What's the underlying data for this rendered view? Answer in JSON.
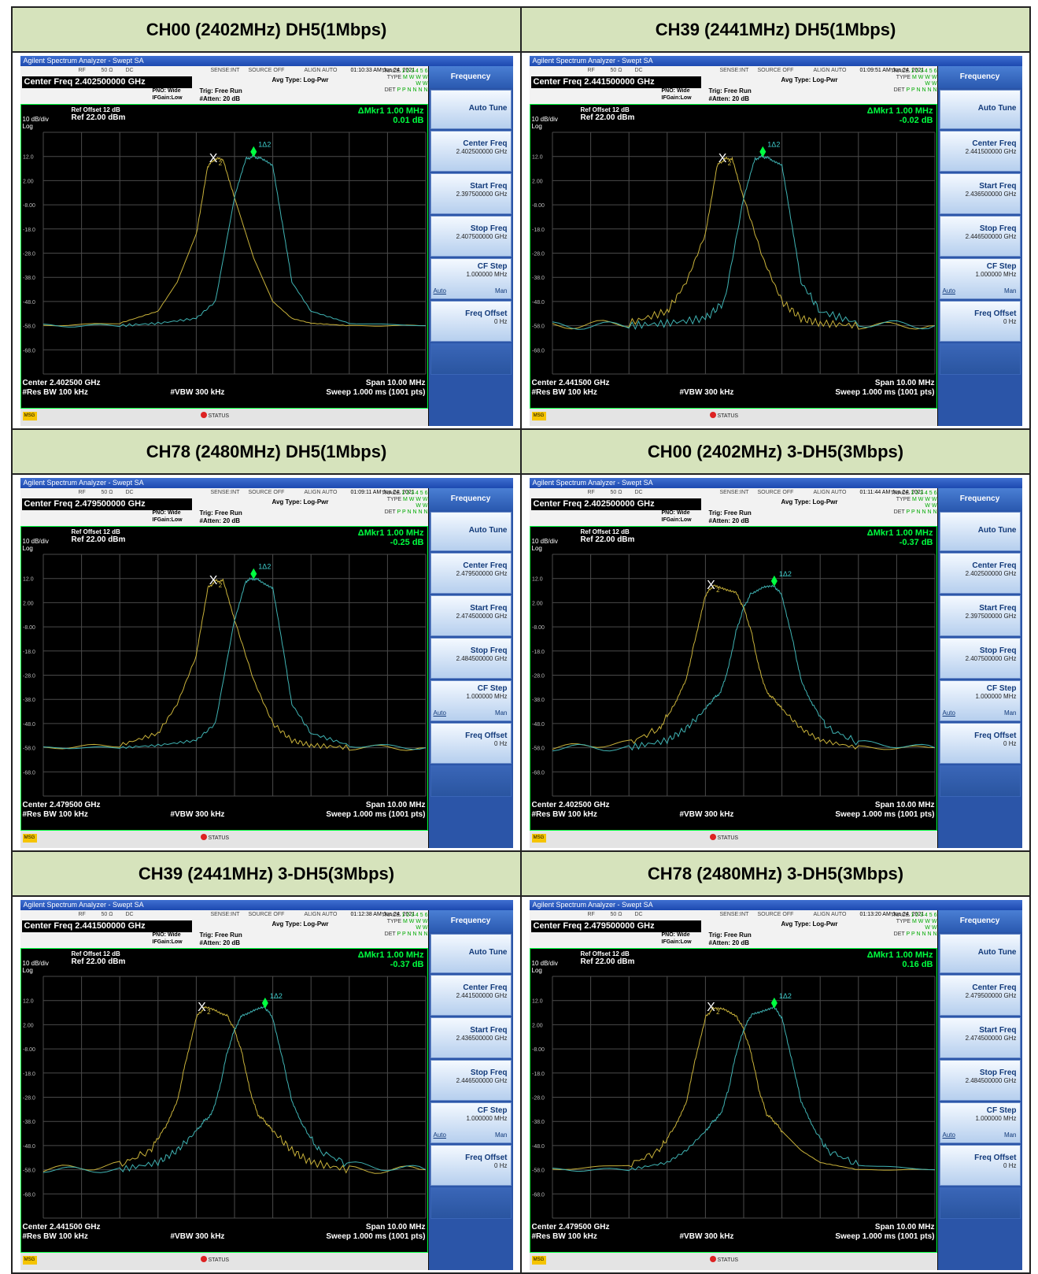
{
  "common": {
    "app_title": "Agilent Spectrum Analyzer - Swept SA",
    "rf": "RF",
    "ohm": "50 Ω",
    "dc": "DC",
    "sense": "SENSE:INT",
    "source": "SOURCE OFF",
    "align": "ALIGN AUTO",
    "avg_type": "Avg Type: Log-Pwr",
    "pno": "PNO: Wide",
    "ifgain": "IFGain:Low",
    "trig": "Trig: Free Run",
    "atten": "#Atten: 20 dB",
    "trace_label": "TRACE",
    "trace_value": "1 2 3 4 5 6",
    "type_label": "TYPE",
    "type_value": "M W W W W W",
    "det_label": "DET",
    "det_value": "P P N N N N",
    "ref_offset": "Ref Offset 12 dB",
    "scale": "10 dB/div",
    "ref_level": "Ref 22.00 dBm",
    "log": "Log",
    "delta_marker": "ΔMkr1 1.00 MHz",
    "res_bw": "#Res BW 100 kHz",
    "vbw": "#VBW 300 kHz",
    "span": "Span 10.00 MHz",
    "sweep": "Sweep  1.000 ms (1001 pts)",
    "msg": "MSG",
    "status": "STATUS",
    "marker_x": "X",
    "marker_2": "2",
    "marker_1d2": "1Δ2",
    "y_ticks": [
      "12.0",
      "2.00",
      "-8.00",
      "-18.0",
      "-28.0",
      "-38.0",
      "-48.0",
      "-58.0",
      "-68.0"
    ],
    "menu": {
      "title": "Frequency",
      "auto_tune": "Auto Tune",
      "center_freq": "Center Freq",
      "start_freq": "Start Freq",
      "stop_freq": "Stop Freq",
      "cf_step": "CF Step",
      "cf_step_value": "1.000000 MHz",
      "auto": "Auto",
      "man": "Man",
      "freq_offset": "Freq Offset",
      "freq_offset_value": "0 Hz"
    },
    "colors": {
      "trace_yellow": "#c9b23a",
      "trace_cyan": "#3fb3b3",
      "marker_green": "#00ff40"
    }
  },
  "panels": [
    {
      "title": "CH00 (2402MHz) DH5(1Mbps)",
      "timestamp": "01:10:33 AM Jun 24, 2021",
      "center_freq_display": "Center Freq 2.402500000 GHz",
      "delta_value": "0.01 dB",
      "center_freq": "2.402500000 GHz",
      "start_freq": "2.397500000 GHz",
      "stop_freq": "2.407500000 GHz",
      "center_label": "Center 2.402500 GHz"
    },
    {
      "title": "CH39 (2441MHz) DH5(1Mbps)",
      "timestamp": "01:09:51 AM Jun 24, 2021",
      "center_freq_display": "Center Freq 2.441500000 GHz",
      "delta_value": "-0.02 dB",
      "center_freq": "2.441500000 GHz",
      "start_freq": "2.436500000 GHz",
      "stop_freq": "2.446500000 GHz",
      "center_label": "Center 2.441500 GHz"
    },
    {
      "title": "CH78 (2480MHz) DH5(1Mbps)",
      "timestamp": "01:09:11 AM Jun 24, 2021",
      "center_freq_display": "Center Freq 2.479500000 GHz",
      "delta_value": "-0.25 dB",
      "center_freq": "2.479500000 GHz",
      "start_freq": "2.474500000 GHz",
      "stop_freq": "2.484500000 GHz",
      "center_label": "Center 2.479500 GHz"
    },
    {
      "title": "CH00 (2402MHz) 3-DH5(3Mbps)",
      "timestamp": "01:11:44 AM Jun 24, 2021",
      "center_freq_display": "Center Freq 2.402500000 GHz",
      "delta_value": "-0.37 dB",
      "center_freq": "2.402500000 GHz",
      "start_freq": "2.397500000 GHz",
      "stop_freq": "2.407500000 GHz",
      "center_label": "Center 2.402500 GHz"
    },
    {
      "title": "CH39 (2441MHz) 3-DH5(3Mbps)",
      "timestamp": "01:12:38 AM Jun 24, 2021",
      "center_freq_display": "Center Freq 2.441500000 GHz",
      "delta_value": "-0.37 dB",
      "center_freq": "2.441500000 GHz",
      "start_freq": "2.436500000 GHz",
      "stop_freq": "2.446500000 GHz",
      "center_label": "Center 2.441500 GHz"
    },
    {
      "title": "CH78 (2480MHz) 3-DH5(3Mbps)",
      "timestamp": "01:13:20 AM Jun 24, 2021",
      "center_freq_display": "Center Freq 2.479500000 GHz",
      "delta_value": "0.16 dB",
      "center_freq": "2.479500000 GHz",
      "start_freq": "2.474500000 GHz",
      "stop_freq": "2.484500000 GHz",
      "center_label": "Center 2.479500 GHz"
    }
  ],
  "chart_data": [
    {
      "type": "line",
      "title": "CH00 (2402MHz) DH5(1Mbps)",
      "xlabel": "",
      "ylabel": "",
      "x_unit": "MHz offset from center",
      "xlim": [
        -5,
        5
      ],
      "ylim": [
        -78,
        22
      ],
      "grid": true,
      "series": [
        {
          "x": [
            -5,
            -3,
            -2,
            -1.5,
            -1,
            -0.7,
            -0.5,
            -0.3,
            0,
            0.5,
            1,
            1.5,
            2,
            3,
            5
          ],
          "y": [
            -58,
            -57,
            -52,
            -40,
            -20,
            8,
            11,
            11,
            -5,
            -30,
            -48,
            -55,
            -57,
            -58,
            -58
          ]
        },
        {
          "x": [
            -5,
            -3,
            -2,
            -1,
            -0.5,
            0,
            0.3,
            0.5,
            0.7,
            1,
            1.3,
            1.5,
            2,
            3,
            5
          ],
          "y": [
            -58,
            -58,
            -57,
            -55,
            -48,
            -5,
            11,
            12,
            11,
            8,
            -20,
            -40,
            -52,
            -57,
            -58
          ]
        }
      ],
      "delta_marker": {
        "dx_mhz": 1.0,
        "dy_db": 0.01
      }
    },
    {
      "type": "line",
      "title": "CH39 (2441MHz) DH5(1Mbps)",
      "xlabel": "",
      "ylabel": "",
      "x_unit": "MHz offset from center",
      "xlim": [
        -5,
        5
      ],
      "ylim": [
        -78,
        22
      ],
      "grid": true,
      "series": [
        {
          "x": [
            -5,
            -3,
            -2,
            -1.5,
            -1,
            -0.7,
            -0.5,
            -0.3,
            0,
            0.5,
            1,
            1.5,
            2,
            3,
            5
          ],
          "y": [
            -58,
            -57,
            -52,
            -40,
            -20,
            8,
            11,
            11,
            -5,
            -30,
            -48,
            -55,
            -57,
            -58,
            -58
          ]
        },
        {
          "x": [
            -5,
            -3,
            -2,
            -1,
            -0.5,
            0,
            0.3,
            0.5,
            0.7,
            1,
            1.3,
            1.5,
            2,
            3,
            5
          ],
          "y": [
            -58,
            -58,
            -57,
            -55,
            -48,
            -5,
            11,
            12,
            11,
            8,
            -20,
            -40,
            -52,
            -57,
            -58
          ]
        }
      ],
      "delta_marker": {
        "dx_mhz": 1.0,
        "dy_db": -0.02
      }
    },
    {
      "type": "line",
      "title": "CH78 (2480MHz) DH5(1Mbps)",
      "xlabel": "",
      "ylabel": "",
      "x_unit": "MHz offset from center",
      "xlim": [
        -5,
        5
      ],
      "ylim": [
        -78,
        22
      ],
      "grid": true,
      "series": [
        {
          "x": [
            -5,
            -3,
            -2,
            -1.5,
            -1,
            -0.7,
            -0.5,
            -0.3,
            0,
            0.5,
            1,
            1.5,
            2,
            3,
            5
          ],
          "y": [
            -58,
            -57,
            -52,
            -40,
            -20,
            8,
            11,
            11,
            -5,
            -30,
            -48,
            -55,
            -57,
            -58,
            -58
          ]
        },
        {
          "x": [
            -5,
            -3,
            -2,
            -1,
            -0.5,
            0,
            0.3,
            0.5,
            0.7,
            1,
            1.3,
            1.5,
            2,
            3,
            5
          ],
          "y": [
            -58,
            -58,
            -57,
            -55,
            -48,
            -5,
            11,
            12,
            11,
            8,
            -20,
            -40,
            -52,
            -57,
            -58
          ]
        }
      ],
      "delta_marker": {
        "dx_mhz": 1.0,
        "dy_db": -0.25
      }
    },
    {
      "type": "line",
      "title": "CH00 (2402MHz) 3-DH5(3Mbps)",
      "xlabel": "",
      "ylabel": "",
      "x_unit": "MHz offset from center",
      "xlim": [
        -5,
        5
      ],
      "ylim": [
        -78,
        22
      ],
      "grid": true,
      "series": [
        {
          "x": [
            -5,
            -3,
            -2.2,
            -1.8,
            -1.5,
            -1.3,
            -1.0,
            -0.8,
            -0.5,
            -0.2,
            0,
            0.2,
            0.4,
            0.6,
            0.8,
            1.0,
            1.5,
            2,
            3,
            5
          ],
          "y": [
            -58,
            -56,
            -50,
            -40,
            -30,
            -15,
            5,
            9,
            8,
            6,
            0,
            -10,
            -25,
            -35,
            -38,
            -42,
            -50,
            -55,
            -58,
            -58
          ]
        },
        {
          "x": [
            -5,
            -3,
            -2,
            -1.5,
            -1,
            -0.8,
            -0.6,
            -0.4,
            -0.2,
            0,
            0.2,
            0.5,
            0.8,
            1.0,
            1.3,
            1.5,
            1.8,
            2.2,
            3,
            5
          ],
          "y": [
            -58,
            -58,
            -55,
            -50,
            -42,
            -38,
            -35,
            -25,
            -10,
            0,
            6,
            8,
            9,
            5,
            -15,
            -30,
            -40,
            -50,
            -56,
            -58
          ]
        }
      ],
      "delta_marker": {
        "dx_mhz": 1.0,
        "dy_db": -0.37
      }
    },
    {
      "type": "line",
      "title": "CH39 (2441MHz) 3-DH5(3Mbps)",
      "xlabel": "",
      "ylabel": "",
      "x_unit": "MHz offset from center",
      "xlim": [
        -5,
        5
      ],
      "ylim": [
        -78,
        22
      ],
      "grid": true,
      "series": [
        {
          "x": [
            -5,
            -3,
            -2.2,
            -1.8,
            -1.5,
            -1.3,
            -1.0,
            -0.8,
            -0.5,
            -0.2,
            0,
            0.2,
            0.4,
            0.6,
            0.8,
            1.0,
            1.5,
            2,
            3,
            5
          ],
          "y": [
            -58,
            -56,
            -50,
            -40,
            -30,
            -15,
            5,
            9,
            8,
            6,
            0,
            -10,
            -25,
            -35,
            -38,
            -42,
            -50,
            -55,
            -58,
            -58
          ]
        },
        {
          "x": [
            -5,
            -3,
            -2,
            -1.5,
            -1,
            -0.8,
            -0.6,
            -0.4,
            -0.2,
            0,
            0.2,
            0.5,
            0.8,
            1.0,
            1.3,
            1.5,
            1.8,
            2.2,
            3,
            5
          ],
          "y": [
            -58,
            -58,
            -55,
            -50,
            -42,
            -38,
            -35,
            -25,
            -10,
            0,
            6,
            8,
            9,
            5,
            -15,
            -30,
            -40,
            -50,
            -56,
            -58
          ]
        }
      ],
      "delta_marker": {
        "dx_mhz": 1.0,
        "dy_db": -0.37
      }
    },
    {
      "type": "line",
      "title": "CH78 (2480MHz) 3-DH5(3Mbps)",
      "xlabel": "",
      "ylabel": "",
      "x_unit": "MHz offset from center",
      "xlim": [
        -5,
        5
      ],
      "ylim": [
        -78,
        22
      ],
      "grid": true,
      "series": [
        {
          "x": [
            -5,
            -3,
            -2.2,
            -1.8,
            -1.5,
            -1.3,
            -1.0,
            -0.8,
            -0.5,
            -0.2,
            0,
            0.2,
            0.4,
            0.6,
            0.8,
            1.0,
            1.5,
            2,
            3,
            5
          ],
          "y": [
            -58,
            -56,
            -50,
            -40,
            -30,
            -15,
            5,
            9,
            8,
            6,
            0,
            -10,
            -25,
            -35,
            -38,
            -42,
            -50,
            -55,
            -58,
            -58
          ]
        },
        {
          "x": [
            -5,
            -3,
            -2,
            -1.5,
            -1,
            -0.8,
            -0.6,
            -0.4,
            -0.2,
            0,
            0.2,
            0.5,
            0.8,
            1.0,
            1.3,
            1.5,
            1.8,
            2.2,
            3,
            5
          ],
          "y": [
            -58,
            -58,
            -55,
            -50,
            -42,
            -38,
            -35,
            -25,
            -10,
            0,
            6,
            8,
            9,
            5,
            -15,
            -30,
            -40,
            -50,
            -56,
            -58
          ]
        }
      ],
      "delta_marker": {
        "dx_mhz": 1.0,
        "dy_db": 0.16
      }
    }
  ]
}
